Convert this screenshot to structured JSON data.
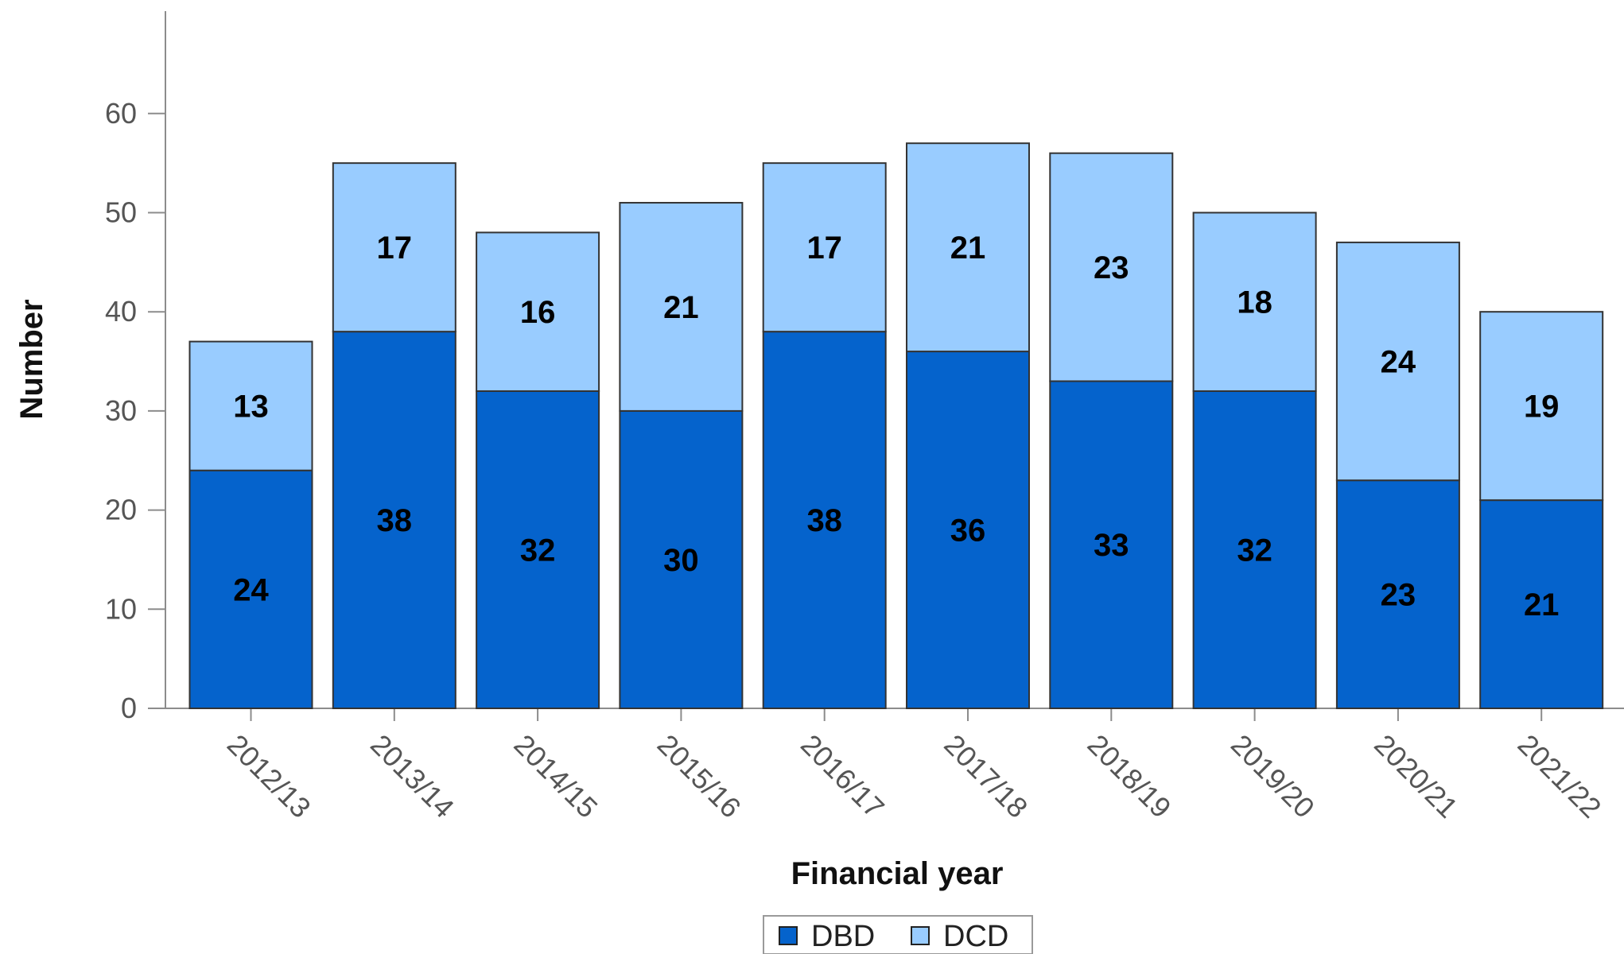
{
  "chart_data": {
    "type": "bar",
    "stacked": true,
    "categories": [
      "2012/13",
      "2013/14",
      "2014/15",
      "2015/16",
      "2016/17",
      "2017/18",
      "2018/19",
      "2019/20",
      "2020/21",
      "2021/22"
    ],
    "series": [
      {
        "name": "DBD",
        "values": [
          24,
          38,
          32,
          30,
          38,
          36,
          33,
          32,
          23,
          21
        ],
        "color": "#0563CC"
      },
      {
        "name": "DCD",
        "values": [
          13,
          17,
          16,
          21,
          17,
          21,
          23,
          18,
          24,
          19
        ],
        "color": "#99CCFF"
      }
    ],
    "xlabel": "Financial year",
    "ylabel": "Number",
    "ylim": [
      0,
      70
    ],
    "yticks": [
      0,
      10,
      20,
      30,
      40,
      50,
      60
    ],
    "grid": false,
    "legend": "bottom-center",
    "data_labels": true
  }
}
